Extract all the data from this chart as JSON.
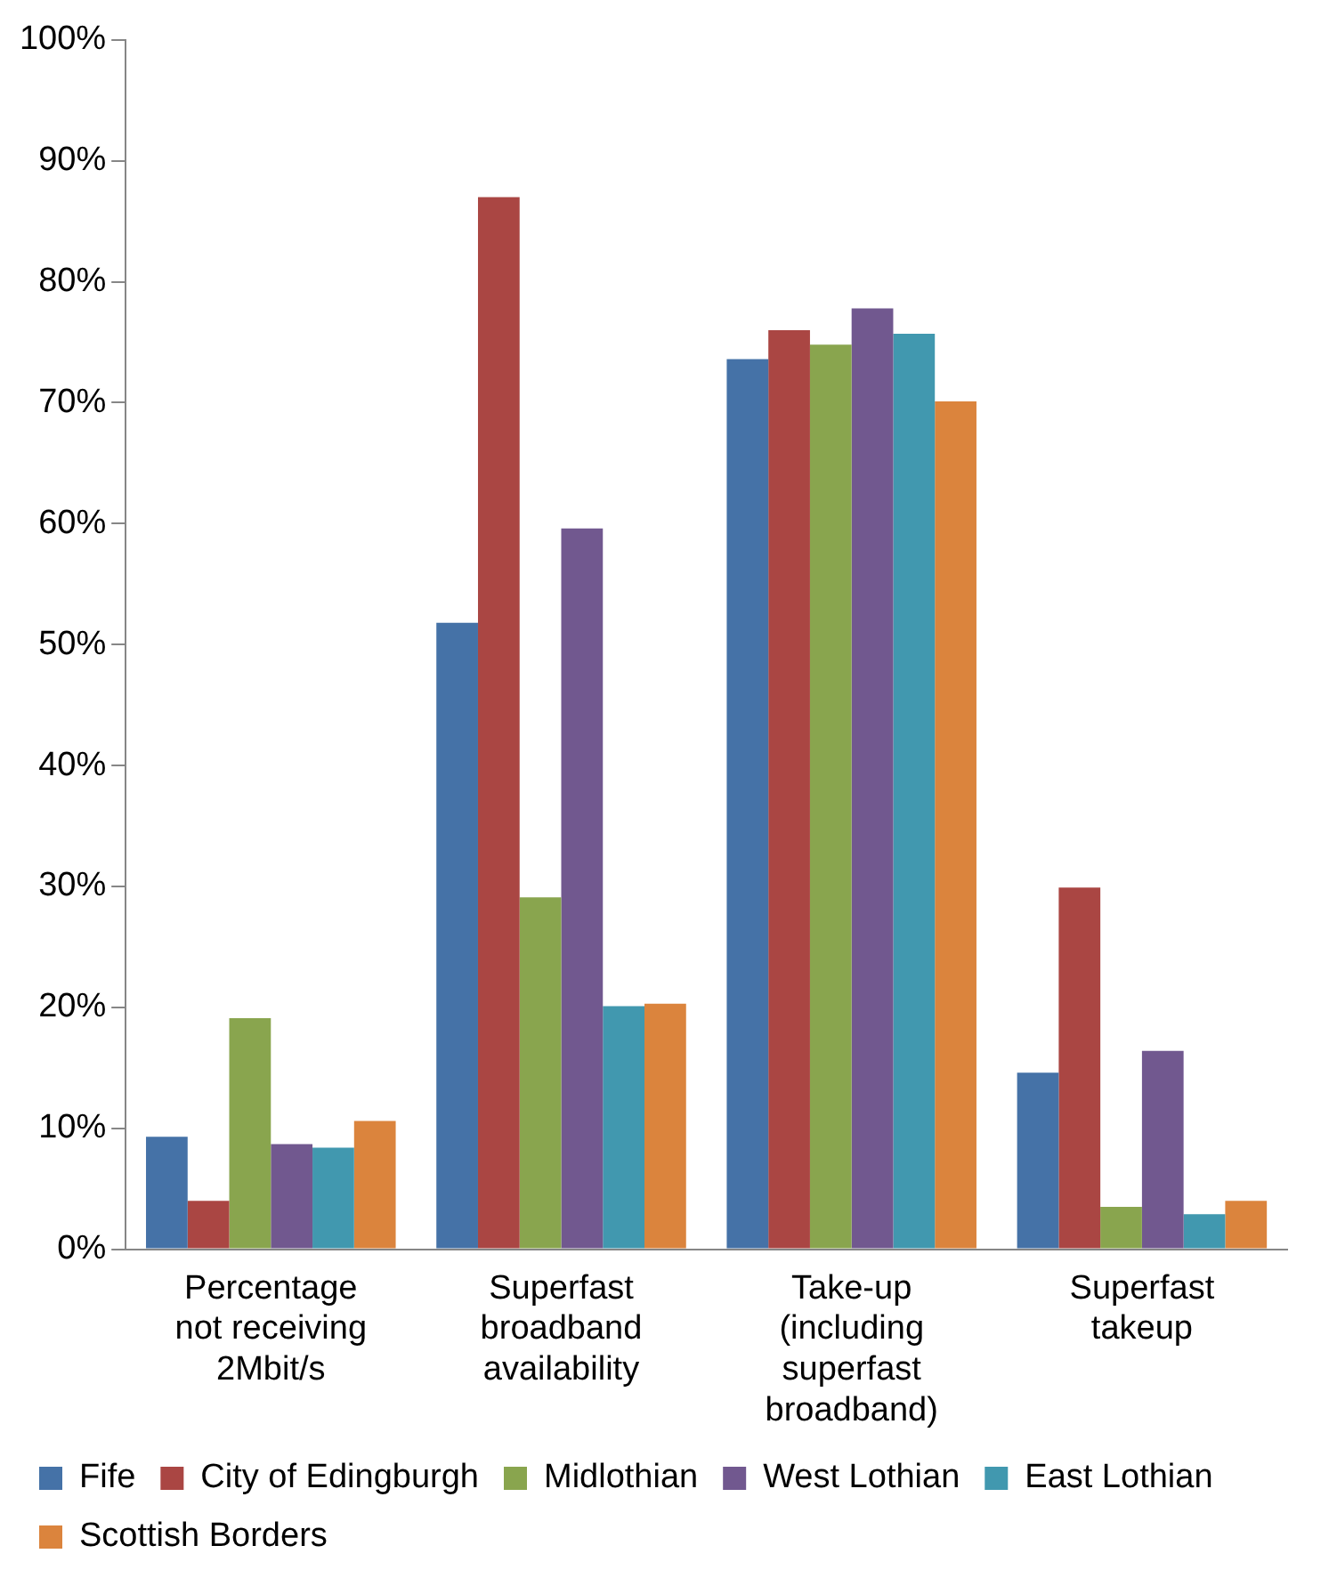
{
  "chart_data": {
    "type": "bar",
    "categories": [
      "Percentage not receiving 2Mbit/s",
      "Superfast broadband availability",
      "Take-up (including superfast broadband)",
      "Superfast takeup"
    ],
    "series": [
      {
        "name": "Fife",
        "color": "#4572a7",
        "values": [
          9.3,
          51.8,
          73.6,
          14.6
        ]
      },
      {
        "name": "City of Edingburgh",
        "color": "#aa4643",
        "values": [
          4.0,
          87.0,
          76.0,
          29.9
        ]
      },
      {
        "name": "Midlothian",
        "color": "#89a54e",
        "values": [
          19.1,
          29.1,
          74.8,
          3.5
        ]
      },
      {
        "name": "West Lothian",
        "color": "#71588f",
        "values": [
          8.7,
          59.6,
          77.8,
          16.4
        ]
      },
      {
        "name": "East Lothian",
        "color": "#4198af",
        "values": [
          8.4,
          20.1,
          75.7,
          2.9
        ]
      },
      {
        "name": "Scottish Borders",
        "color": "#db843d",
        "values": [
          10.6,
          20.3,
          70.1,
          4.0
        ]
      }
    ],
    "ylim": [
      0,
      100
    ],
    "yticks": [
      {
        "value": 0,
        "label": "0%"
      },
      {
        "value": 10,
        "label": "10%"
      },
      {
        "value": 20,
        "label": "20%"
      },
      {
        "value": 30,
        "label": "30%"
      },
      {
        "value": 40,
        "label": "40%"
      },
      {
        "value": 50,
        "label": "50%"
      },
      {
        "value": 60,
        "label": "60%"
      },
      {
        "value": 70,
        "label": "70%"
      },
      {
        "value": 80,
        "label": "80%"
      },
      {
        "value": 90,
        "label": "90%"
      },
      {
        "value": 100,
        "label": "100%"
      }
    ],
    "grid": false,
    "legend": "bottom"
  }
}
